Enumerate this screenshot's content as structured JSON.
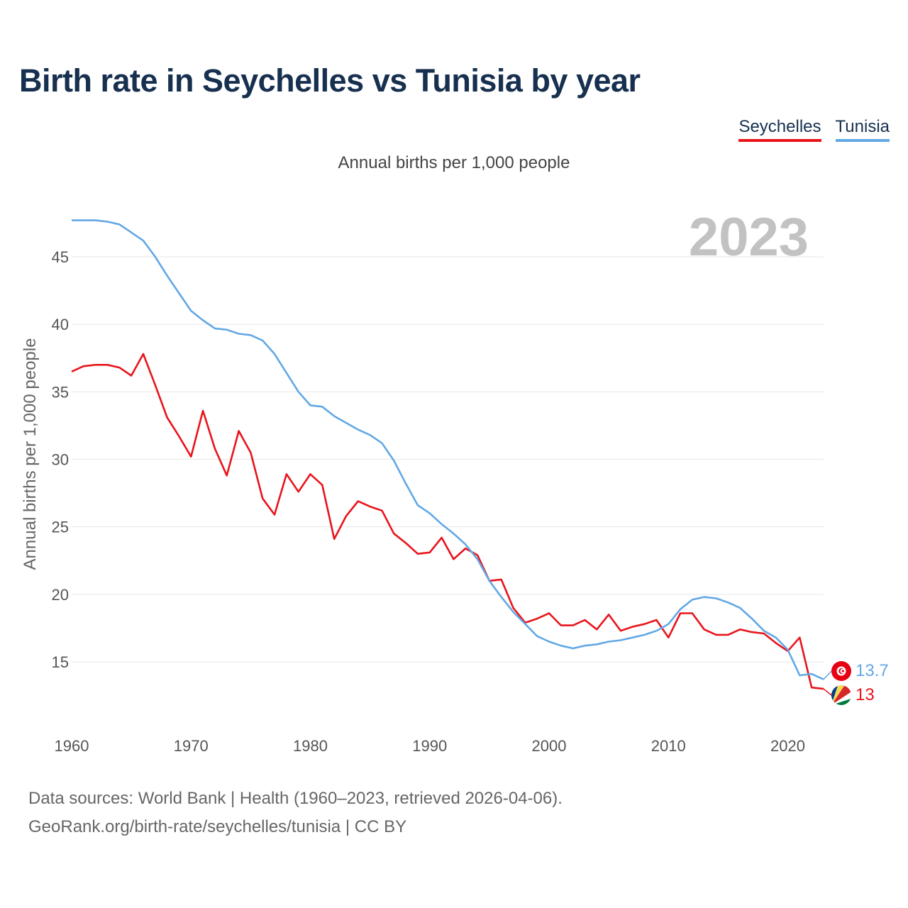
{
  "title": "Birth rate in Seychelles vs Tunisia by year",
  "subtitle": "Annual births per 1,000 people",
  "legend": {
    "seychelles": "Seychelles",
    "tunisia": "Tunisia"
  },
  "year_label": "2023",
  "footer": {
    "line1": "Data sources: World Bank | Health (1960–2023, retrieved 2026-04-06).",
    "line2": "GeoRank.org/birth-rate/seychelles/tunisia | CC BY"
  },
  "colors": {
    "seychelles": "#e8141b",
    "tunisia": "#62a8e5",
    "title": "#17304f",
    "grid": "#e6e6e6"
  },
  "chart_data": {
    "type": "line",
    "title": "Birth rate in Seychelles vs Tunisia by year",
    "xlabel": "",
    "ylabel": "Annual births per 1,000 people",
    "xlim": [
      1960,
      2023
    ],
    "ylim": [
      10.5,
      48.5
    ],
    "x_ticks": [
      1960,
      1970,
      1980,
      1990,
      2000,
      2010,
      2020
    ],
    "y_ticks": [
      15,
      20,
      25,
      30,
      35,
      40,
      45
    ],
    "grid": true,
    "legend_position": "top-right",
    "x": [
      1960,
      1961,
      1962,
      1963,
      1964,
      1965,
      1966,
      1967,
      1968,
      1969,
      1970,
      1971,
      1972,
      1973,
      1974,
      1975,
      1976,
      1977,
      1978,
      1979,
      1980,
      1981,
      1982,
      1983,
      1984,
      1985,
      1986,
      1987,
      1988,
      1989,
      1990,
      1991,
      1992,
      1993,
      1994,
      1995,
      1996,
      1997,
      1998,
      1999,
      2000,
      2001,
      2002,
      2003,
      2004,
      2005,
      2006,
      2007,
      2008,
      2009,
      2010,
      2011,
      2012,
      2013,
      2014,
      2015,
      2016,
      2017,
      2018,
      2019,
      2020,
      2021,
      2022,
      2023
    ],
    "series": [
      {
        "name": "Seychelles",
        "color": "#e8141b",
        "end_label": "13",
        "values": [
          36.5,
          36.9,
          37.0,
          37.0,
          36.8,
          36.2,
          37.8,
          35.5,
          33.1,
          31.7,
          30.2,
          33.6,
          30.8,
          28.8,
          32.1,
          30.5,
          27.1,
          25.9,
          28.9,
          27.6,
          28.9,
          28.1,
          24.1,
          25.8,
          26.9,
          26.5,
          26.2,
          24.5,
          23.8,
          23.0,
          23.1,
          24.2,
          22.6,
          23.4,
          22.9,
          21.0,
          21.1,
          19.0,
          17.9,
          18.2,
          18.6,
          17.7,
          17.7,
          18.1,
          17.4,
          18.5,
          17.3,
          17.6,
          17.8,
          18.1,
          16.8,
          18.6,
          18.6,
          17.4,
          17.0,
          17.0,
          17.4,
          17.2,
          17.1,
          16.4,
          15.8,
          16.8,
          13.1,
          13.0
        ]
      },
      {
        "name": "Tunisia",
        "color": "#62a8e5",
        "end_label": "13.7",
        "values": [
          47.7,
          47.7,
          47.7,
          47.6,
          47.4,
          46.8,
          46.2,
          45.0,
          43.6,
          42.3,
          41.0,
          40.3,
          39.7,
          39.6,
          39.3,
          39.2,
          38.8,
          37.8,
          36.4,
          35.0,
          34.0,
          33.9,
          33.2,
          32.7,
          32.2,
          31.8,
          31.2,
          29.9,
          28.2,
          26.6,
          26.0,
          25.2,
          24.5,
          23.7,
          22.6,
          21.0,
          19.8,
          18.7,
          17.8,
          16.9,
          16.5,
          16.2,
          16.0,
          16.2,
          16.3,
          16.5,
          16.6,
          16.8,
          17.0,
          17.3,
          17.8,
          18.9,
          19.6,
          19.8,
          19.7,
          19.4,
          19.0,
          18.2,
          17.3,
          16.8,
          15.9,
          14.0,
          14.1,
          13.7
        ]
      }
    ]
  }
}
